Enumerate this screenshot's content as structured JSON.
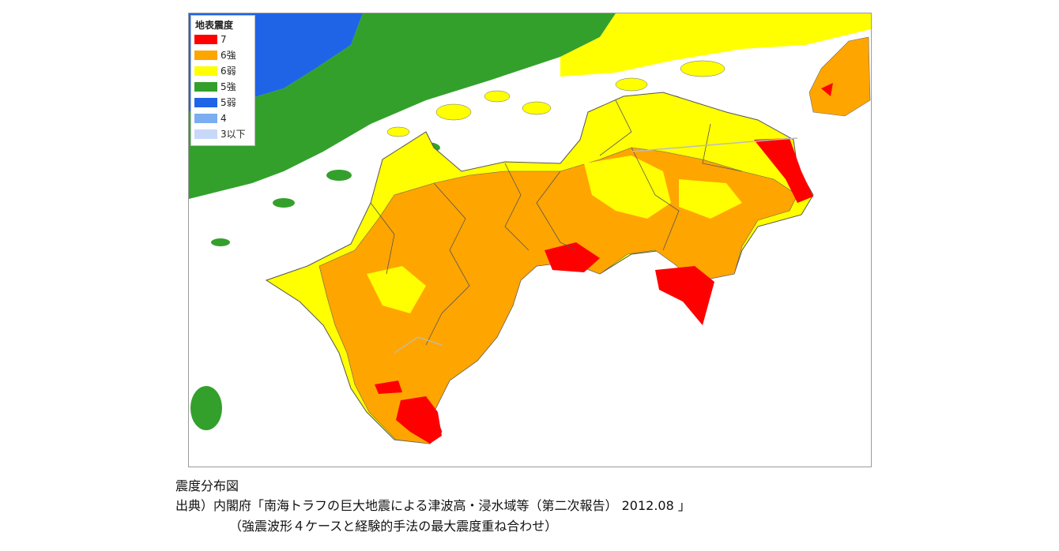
{
  "legend": {
    "title": "地表震度",
    "items": [
      {
        "label": "7",
        "color": "#ff0000"
      },
      {
        "label": "6強",
        "color": "#ffa500"
      },
      {
        "label": "6弱",
        "color": "#ffff00"
      },
      {
        "label": "5強",
        "color": "#33a02c"
      },
      {
        "label": "5弱",
        "color": "#1f64e6"
      },
      {
        "label": "4",
        "color": "#7aaef0"
      },
      {
        "label": "3以下",
        "color": "#c8d8f8"
      }
    ]
  },
  "caption": {
    "line1": "震度分布図",
    "line2": "出典）内閣府「南海トラフの巨大地震による津波高・浸水域等（第二次報告） 2012.08 」",
    "line3": "（強震波形４ケースと経験的手法の最大震度重ね合わせ）"
  }
}
